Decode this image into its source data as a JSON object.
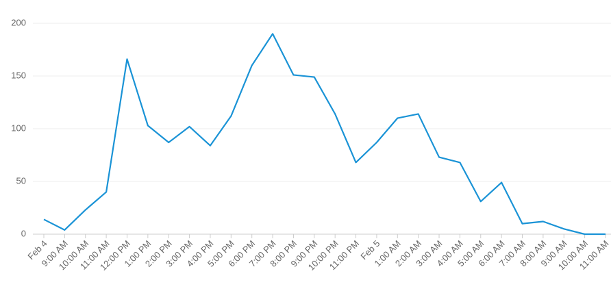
{
  "chart_data": {
    "type": "line",
    "categories": [
      "Feb 4",
      "9:00 AM",
      "10:00 AM",
      "11:00 AM",
      "12:00 PM",
      "1:00 PM",
      "2:00 PM",
      "3:00 PM",
      "4:00 PM",
      "5:00 PM",
      "6:00 PM",
      "7:00 PM",
      "8:00 PM",
      "9:00 PM",
      "10:00 PM",
      "11:00 PM",
      "Feb 5",
      "1:00 AM",
      "2:00 AM",
      "3:00 AM",
      "4:00 AM",
      "5:00 AM",
      "6:00 AM",
      "7:00 AM",
      "8:00 AM",
      "9:00 AM",
      "10:00 AM",
      "11:00 AM"
    ],
    "values": [
      14,
      4,
      23,
      40,
      166,
      103,
      87,
      102,
      84,
      112,
      160,
      190,
      151,
      149,
      114,
      68,
      87,
      110,
      114,
      73,
      68,
      31,
      49,
      10,
      12,
      5,
      0,
      0
    ],
    "color": "#1a93d6",
    "ylim": [
      0,
      200
    ],
    "yticks": [
      0,
      50,
      100,
      150,
      200
    ],
    "grid": true
  }
}
